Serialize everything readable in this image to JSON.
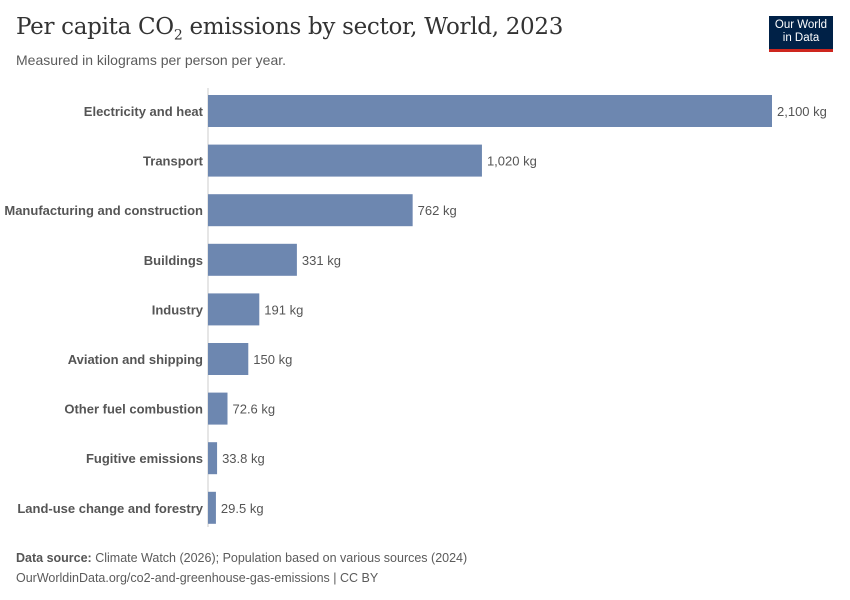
{
  "header": {
    "title_pre": "Per capita CO",
    "title_sub": "2",
    "title_post": " emissions by sector, World, 2023",
    "subtitle": "Measured in kilograms per person per year."
  },
  "logo": {
    "line1": "Our World",
    "line2": "in Data"
  },
  "footer": {
    "source_label": "Data source:",
    "source": " Climate Watch (2026); Population based on various sources (2024)",
    "url": "OurWorldinData.org/co2-and-greenhouse-gas-emissions | CC BY"
  },
  "colors": {
    "bar": "#6d87b0",
    "logo_bg": "#002147",
    "logo_accent": "#ce261e"
  },
  "chart_data": {
    "type": "bar",
    "orientation": "horizontal",
    "unit": "kg",
    "categories": [
      "Electricity and heat",
      "Transport",
      "Manufacturing and construction",
      "Buildings",
      "Industry",
      "Aviation and shipping",
      "Other fuel combustion",
      "Fugitive emissions",
      "Land-use change and forestry"
    ],
    "values": [
      2100,
      1020,
      762,
      331,
      191,
      150,
      72.6,
      33.8,
      29.5
    ],
    "labels": [
      "2,100 kg",
      "1,020 kg",
      "762 kg",
      "331 kg",
      "191 kg",
      "150 kg",
      "72.6 kg",
      "33.8 kg",
      "29.5 kg"
    ],
    "xlim": [
      0,
      2100
    ]
  }
}
